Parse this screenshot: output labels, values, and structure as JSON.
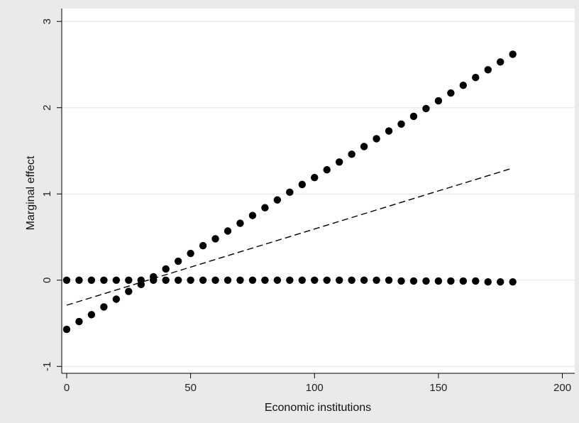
{
  "chart_data": {
    "type": "scatter",
    "xlabel": "Economic institutions",
    "ylabel": "Marginal effect",
    "xlim": [
      -2,
      205
    ],
    "ylim": [
      -1.08,
      3.15
    ],
    "xticks": [
      0,
      50,
      100,
      150,
      200
    ],
    "yticks": [
      -1,
      0,
      1,
      2,
      3
    ],
    "xtick_labels": [
      "0",
      "50",
      "100",
      "150",
      "200"
    ],
    "ytick_labels": [
      "-1",
      "0",
      "1",
      "2",
      "3"
    ],
    "grid": true,
    "legend": "none",
    "series": [
      {
        "style": "dots",
        "color": "#000000",
        "x": [
          0,
          5,
          10,
          15,
          20,
          25,
          30,
          35,
          40,
          45,
          50,
          55,
          60,
          65,
          70,
          75,
          80,
          85,
          90,
          95,
          100,
          105,
          110,
          115,
          120,
          125,
          130,
          135,
          140,
          145,
          150,
          155,
          160,
          165,
          170,
          175,
          180
        ],
        "y": [
          -0.57,
          -0.48,
          -0.4,
          -0.31,
          -0.22,
          -0.13,
          -0.05,
          0.04,
          0.13,
          0.22,
          0.31,
          0.4,
          0.48,
          0.57,
          0.66,
          0.75,
          0.84,
          0.93,
          1.02,
          1.11,
          1.19,
          1.28,
          1.37,
          1.46,
          1.55,
          1.64,
          1.73,
          1.81,
          1.9,
          1.99,
          2.08,
          2.17,
          2.26,
          2.35,
          2.44,
          2.53,
          2.62
        ]
      },
      {
        "style": "dots",
        "color": "#000000",
        "x": [
          0,
          5,
          10,
          15,
          20,
          25,
          30,
          35,
          40,
          45,
          50,
          55,
          60,
          65,
          70,
          75,
          80,
          85,
          90,
          95,
          100,
          105,
          110,
          115,
          120,
          125,
          130,
          135,
          140,
          145,
          150,
          155,
          160,
          165,
          170,
          175,
          180
        ],
        "y": [
          0,
          0,
          0,
          0,
          0,
          0,
          0,
          0,
          0,
          0,
          0,
          0,
          0,
          0,
          0,
          0,
          0,
          0,
          0,
          0,
          0,
          0,
          0,
          0,
          0,
          0,
          0,
          -0.01,
          -0.01,
          -0.01,
          -0.01,
          -0.01,
          -0.01,
          -0.01,
          -0.02,
          -0.02,
          -0.02
        ]
      },
      {
        "style": "dashed-line",
        "color": "#000000",
        "x": [
          0,
          180
        ],
        "y": [
          -0.29,
          1.3
        ]
      }
    ]
  }
}
